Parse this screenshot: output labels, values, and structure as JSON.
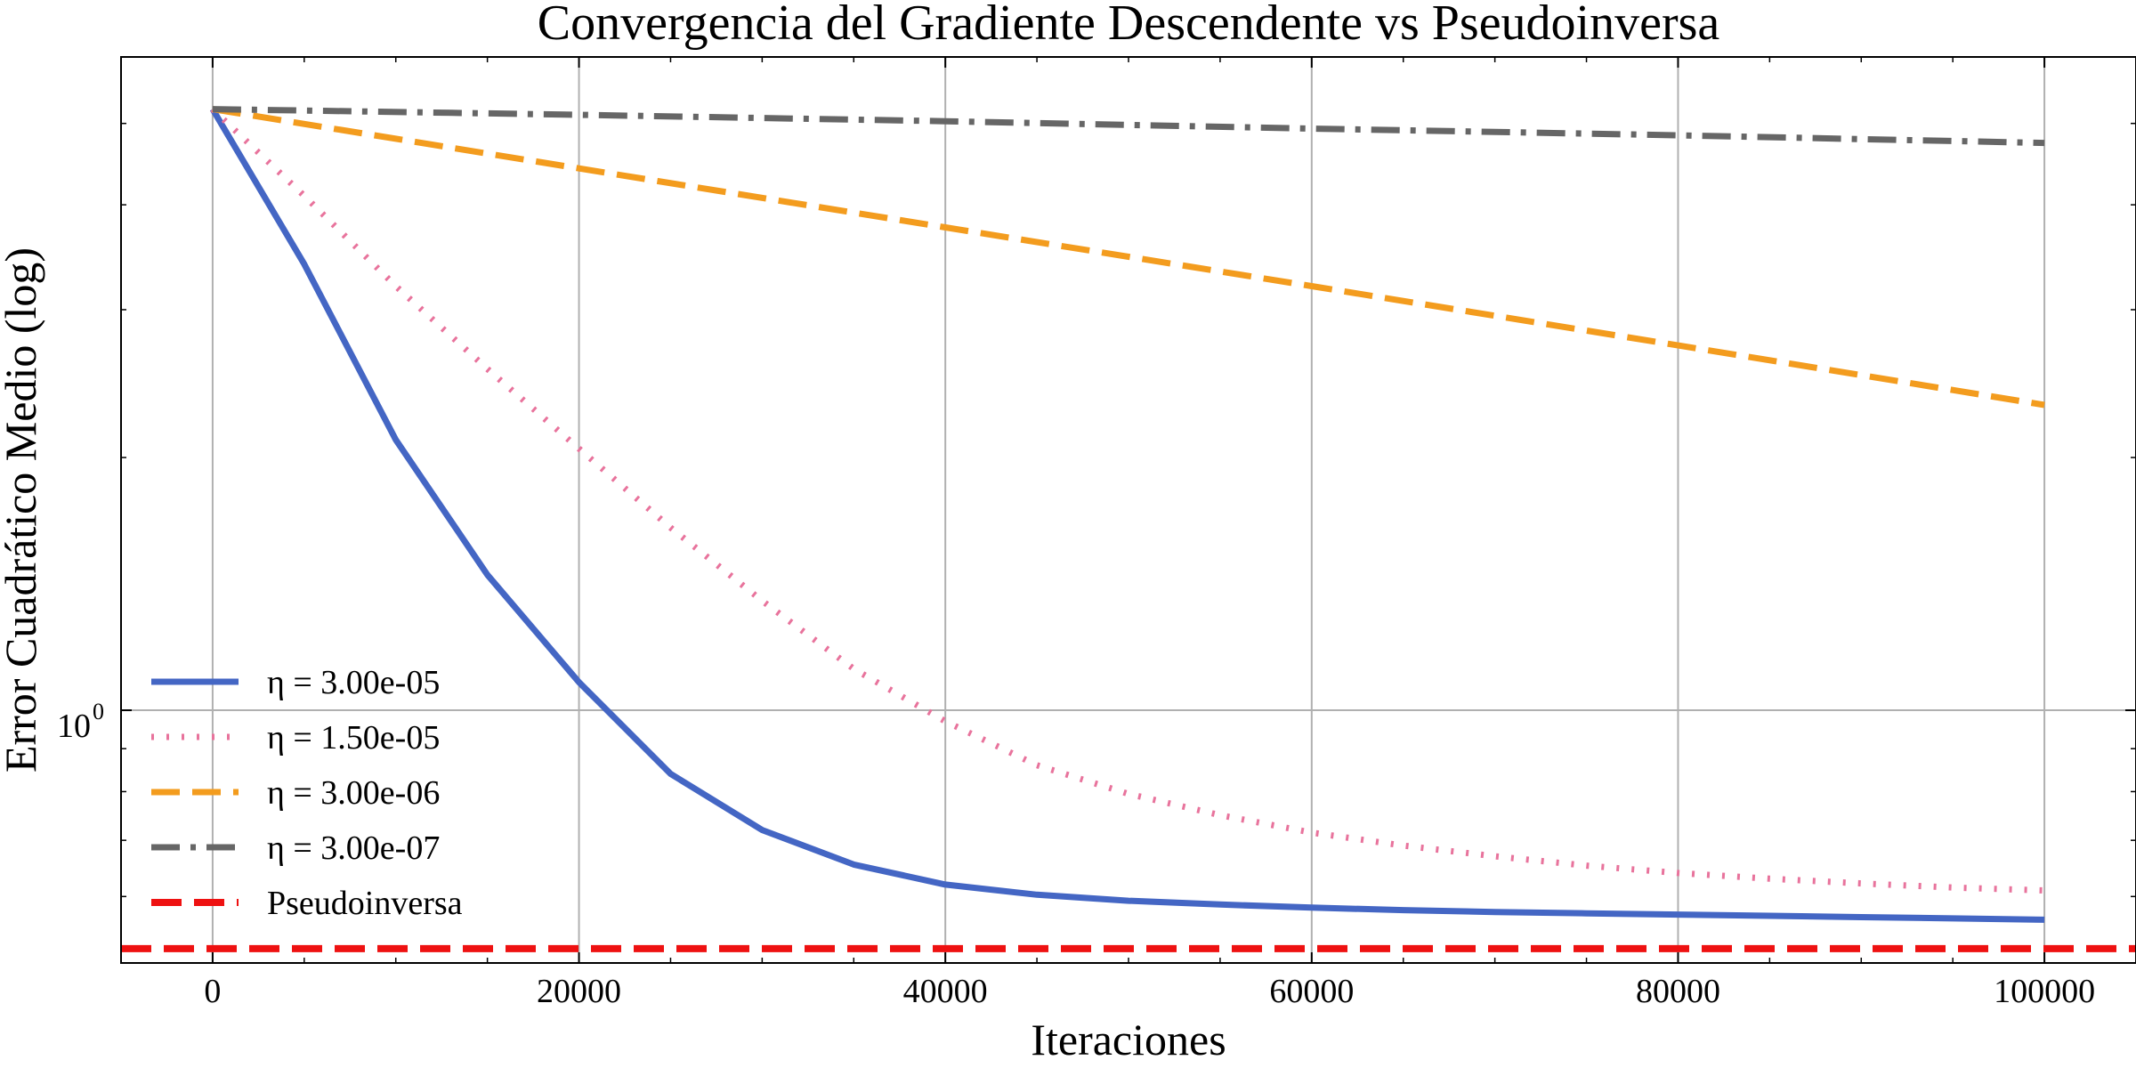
{
  "chart_data": {
    "type": "line",
    "title": "Convergencia del Gradiente Descendente vs Pseudoinversa",
    "xlabel": "Iteraciones",
    "ylabel": "Error Cuadrático Medio (log)",
    "xlim": [
      -5000,
      105000
    ],
    "ylim": [
      0.5,
      6.0
    ],
    "yscale": "log",
    "grid": true,
    "legend_position": "lower-left",
    "x_ticks": [
      0,
      20000,
      40000,
      60000,
      80000,
      100000
    ],
    "x_tick_labels": [
      "0",
      "20000",
      "40000",
      "60000",
      "80000",
      "100000"
    ],
    "y_ticks": [
      1
    ],
    "y_tick_labels": [
      "10",
      "0"
    ],
    "series": [
      {
        "name": "η = 3.00e-05",
        "color": "#4466c4",
        "style": "solid",
        "x": [
          0,
          5000,
          10000,
          15000,
          20000,
          25000,
          30000,
          35000,
          40000,
          45000,
          50000,
          55000,
          60000,
          65000,
          70000,
          75000,
          80000,
          85000,
          90000,
          95000,
          100000
        ],
        "y": [
          5.2,
          3.4,
          2.1,
          1.45,
          1.08,
          0.84,
          0.72,
          0.655,
          0.62,
          0.603,
          0.593,
          0.587,
          0.582,
          0.578,
          0.575,
          0.573,
          0.571,
          0.569,
          0.567,
          0.565,
          0.563
        ]
      },
      {
        "name": "η = 1.50e-05",
        "color": "#e8739c",
        "style": "dotted",
        "x": [
          0,
          5000,
          10000,
          15000,
          20000,
          25000,
          30000,
          35000,
          40000,
          45000,
          50000,
          55000,
          60000,
          65000,
          70000,
          75000,
          80000,
          85000,
          90000,
          95000,
          100000
        ],
        "y": [
          5.2,
          4.1,
          3.2,
          2.55,
          2.05,
          1.65,
          1.35,
          1.12,
          0.97,
          0.86,
          0.795,
          0.75,
          0.715,
          0.69,
          0.67,
          0.653,
          0.64,
          0.63,
          0.622,
          0.615,
          0.61
        ]
      },
      {
        "name": "η = 3.00e-06",
        "color": "#f39c1e",
        "style": "dashed",
        "x": [
          0,
          20000,
          40000,
          60000,
          80000,
          100000
        ],
        "y": [
          5.2,
          4.42,
          3.76,
          3.2,
          2.72,
          2.31
        ]
      },
      {
        "name": "η = 3.00e-07",
        "color": "#666666",
        "style": "dashdot",
        "x": [
          0,
          20000,
          40000,
          60000,
          80000,
          100000
        ],
        "y": [
          5.2,
          5.12,
          5.03,
          4.93,
          4.84,
          4.74
        ]
      },
      {
        "name": "Pseudoinversa",
        "color": "#ee1111",
        "style": "dashed-horizontal",
        "x": [
          -5000,
          105000
        ],
        "y": [
          0.52,
          0.52
        ]
      }
    ]
  }
}
